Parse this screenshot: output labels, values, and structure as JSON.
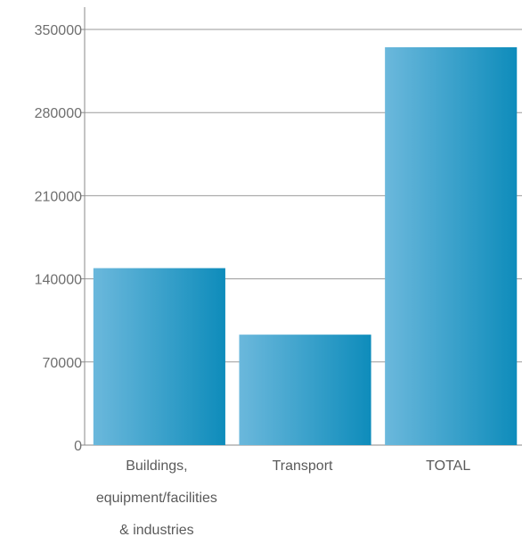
{
  "chart_data": {
    "type": "bar",
    "categories": [
      "Buildings, equipment/facilities & industries",
      "Transport",
      "TOTAL"
    ],
    "category_label_lines": [
      [
        "Buildings,",
        "equipment/facilities",
        "& industries"
      ],
      [
        "Transport"
      ],
      [
        "TOTAL"
      ]
    ],
    "values": [
      149000,
      93000,
      335000
    ],
    "title": "",
    "xlabel": "",
    "ylabel": "",
    "ylim": [
      0,
      350000
    ],
    "yticks": [
      0,
      70000,
      140000,
      210000,
      280000,
      350000
    ],
    "ytick_labels": [
      "0",
      "70000",
      "140000",
      "210000",
      "280000",
      "350000"
    ],
    "grid": true,
    "colors": {
      "bar_light": "#6bb8dc",
      "bar_dark": "#0e8cbb",
      "grid": "#9a9a9a",
      "axis": "#8a8a8a"
    }
  }
}
